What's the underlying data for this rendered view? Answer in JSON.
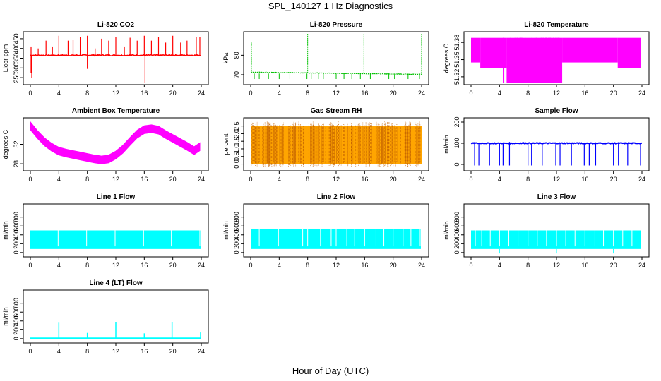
{
  "page_title": "SPL_140127  1 Hz Diagnostics",
  "x_axis_label": "Hour of Day (UTC)",
  "chart_data": [
    {
      "type": "line",
      "title": "Li-820 CO2",
      "ylabel": "Licor ppm",
      "color": "#ff0000",
      "xlim": [
        0,
        24
      ],
      "ylim": [
        225,
        475
      ],
      "x_ticks": [
        0,
        4,
        8,
        12,
        16,
        20,
        24
      ],
      "y_ticks": [
        250,
        300,
        350,
        400,
        450
      ],
      "baseline": 365,
      "noise": 6,
      "spikes": [
        [
          0.1,
          410
        ],
        [
          0.1,
          275
        ],
        [
          0.2,
          250
        ],
        [
          1.1,
          400
        ],
        [
          2.2,
          440
        ],
        [
          3.1,
          410
        ],
        [
          4.0,
          465
        ],
        [
          5.3,
          440
        ],
        [
          6.0,
          445
        ],
        [
          7.0,
          460
        ],
        [
          8.0,
          465
        ],
        [
          8.0,
          295
        ],
        [
          9.1,
          400
        ],
        [
          10.0,
          450
        ],
        [
          11.0,
          440
        ],
        [
          12.0,
          460
        ],
        [
          13.2,
          410
        ],
        [
          14.0,
          455
        ],
        [
          15.0,
          440
        ],
        [
          16.0,
          465
        ],
        [
          16.1,
          225
        ],
        [
          17.0,
          440
        ],
        [
          18.0,
          460
        ],
        [
          19.0,
          430
        ],
        [
          20.0,
          465
        ],
        [
          21.1,
          430
        ],
        [
          22.0,
          440
        ],
        [
          23.3,
          460
        ],
        [
          23.8,
          460
        ]
      ]
    },
    {
      "type": "line",
      "title": "Li-820 Pressure",
      "ylabel": "kPa",
      "color": "#00c000",
      "xlim": [
        0,
        24
      ],
      "ylim": [
        66,
        91
      ],
      "x_ticks": [
        0,
        4,
        8,
        12,
        16,
        20,
        24
      ],
      "y_ticks": [
        70,
        80
      ],
      "baseline_start": 71.3,
      "baseline_end": 70.2,
      "noise": 0.25,
      "spikes": [
        [
          0.1,
          86.5
        ],
        [
          8.0,
          91
        ],
        [
          15.9,
          91
        ],
        [
          24.0,
          91
        ]
      ],
      "dips": [
        0.5,
        1.2,
        2.5,
        4.0,
        5.5,
        7.9,
        8.5,
        9.5,
        10.2,
        12.0,
        13.1,
        14.2,
        15.4,
        16.8,
        18.0,
        19.4,
        20.2,
        22.1,
        23.7
      ]
    },
    {
      "type": "area",
      "title": "Li-820 Temperature",
      "ylabel": "degrees C",
      "color": "#ff00ff",
      "xlim": [
        0,
        24
      ],
      "ylim": [
        51.31,
        51.395
      ],
      "x_ticks": [
        0,
        4,
        8,
        12,
        16,
        20,
        24
      ],
      "y_ticks": [
        51.32,
        51.35,
        51.38
      ],
      "segments": [
        [
          0,
          1.3,
          51.345,
          51.388
        ],
        [
          1.3,
          5.0,
          51.335,
          51.388
        ],
        [
          5.0,
          12.8,
          51.31,
          51.388
        ],
        [
          12.8,
          20.6,
          51.345,
          51.388
        ],
        [
          20.6,
          23.8,
          51.335,
          51.388
        ]
      ]
    },
    {
      "type": "area",
      "title": "Ambient Box Temperature",
      "ylabel": "degrees C",
      "color": "#ff00ff",
      "xlim": [
        0,
        24
      ],
      "ylim": [
        27,
        37
      ],
      "x_ticks": [
        0,
        4,
        8,
        12,
        16,
        20,
        24
      ],
      "y_ticks": [
        28,
        32
      ],
      "x": [
        0,
        1,
        2,
        3,
        4,
        5,
        6,
        7,
        8,
        9,
        10,
        11,
        12,
        13,
        14,
        15,
        16,
        17,
        18,
        19,
        20,
        21,
        22,
        23,
        23.8
      ],
      "y": [
        35.8,
        34.0,
        32.5,
        31.4,
        30.6,
        30.2,
        29.9,
        29.6,
        29.3,
        29.0,
        28.8,
        29.0,
        29.8,
        31.0,
        32.6,
        34.1,
        35.0,
        35.2,
        34.9,
        34.0,
        33.2,
        32.4,
        31.6,
        30.7,
        31.5
      ],
      "band": 0.8
    },
    {
      "type": "area",
      "title": "Gas Stream RH",
      "ylabel": "percent",
      "color": "#ffa500",
      "xlim": [
        0,
        24
      ],
      "ylim": [
        -0.3,
        2.9
      ],
      "x_ticks": [
        0,
        4,
        8,
        12,
        16,
        20,
        24
      ],
      "y_ticks": [
        0.0,
        0.5,
        1.0,
        1.5,
        2.0,
        2.5
      ],
      "low": 0.0,
      "high": 2.5
    },
    {
      "type": "line",
      "title": "Sample Flow",
      "ylabel": "ml/min",
      "color": "#0000ff",
      "xlim": [
        0,
        24
      ],
      "ylim": [
        -20,
        210
      ],
      "x_ticks": [
        0,
        4,
        8,
        12,
        16,
        20,
        24
      ],
      "y_ticks": [
        0,
        100,
        200
      ],
      "baseline": 100,
      "noise": 2,
      "dips": [
        0.5,
        1.1,
        2.6,
        4.0,
        4.5,
        5.4,
        8.0,
        8.5,
        10.0,
        11.9,
        12.5,
        14.1,
        15.9,
        16.6,
        17.5,
        20.0,
        20.7,
        22.0,
        23.8
      ]
    },
    {
      "type": "area",
      "title": "Line 1 Flow",
      "ylabel": "ml/min",
      "color": "#00ffff",
      "xlim": [
        0,
        24
      ],
      "ylim": [
        -50,
        1050
      ],
      "x_ticks": [
        0,
        4,
        8,
        12,
        16,
        20,
        24
      ],
      "y_ticks": [
        0,
        200,
        400,
        600,
        800
      ],
      "low": 80,
      "high": 500,
      "gaps": [
        3.9,
        7.9,
        11.9,
        15.9,
        19.8,
        23.8
      ]
    },
    {
      "type": "area",
      "title": "Line 2 Flow",
      "ylabel": "ml/min",
      "color": "#00ffff",
      "xlim": [
        0,
        24
      ],
      "ylim": [
        -50,
        1050
      ],
      "x_ticks": [
        0,
        4,
        8,
        12,
        16,
        20,
        24
      ],
      "y_ticks": [
        0,
        200,
        400,
        600,
        800
      ],
      "low": 80,
      "high": 540,
      "gaps": [
        1.2,
        3.9,
        7.3,
        8.0,
        9.8,
        11.3,
        12.0,
        13.5,
        14.6,
        16.0,
        17.6,
        18.7,
        20.0,
        21.4,
        22.5,
        23.8
      ]
    },
    {
      "type": "area",
      "title": "Line 3 Flow",
      "ylabel": "ml/min",
      "color": "#00ffff",
      "xlim": [
        0,
        24
      ],
      "ylim": [
        -50,
        1050
      ],
      "x_ticks": [
        0,
        4,
        8,
        12,
        16,
        20,
        24
      ],
      "y_ticks": [
        0,
        200,
        400,
        600,
        800
      ],
      "low": 80,
      "high": 500,
      "gaps": [
        0.6,
        1.5,
        2.7,
        4.0,
        5.3,
        6.6,
        8.0,
        9.3,
        10.6,
        12.0,
        13.3,
        14.6,
        16.0,
        17.4,
        18.6,
        20.0,
        21.3,
        22.6
      ],
      "dip_low": [
        4.0,
        12.0,
        20.0
      ]
    },
    {
      "type": "line",
      "title": "Line 4 (LT) Flow",
      "ylabel": "ml/min",
      "color": "#00ffff",
      "xlim": [
        0,
        24
      ],
      "ylim": [
        -50,
        1050
      ],
      "x_ticks": [
        0,
        4,
        8,
        12,
        16,
        20,
        24
      ],
      "y_ticks": [
        0,
        200,
        400,
        600,
        800
      ],
      "baseline": 10,
      "spikes": [
        [
          4.0,
          360
        ],
        [
          8.0,
          130
        ],
        [
          12.0,
          380
        ],
        [
          16.0,
          120
        ],
        [
          19.9,
          370
        ],
        [
          23.9,
          140
        ]
      ]
    }
  ]
}
